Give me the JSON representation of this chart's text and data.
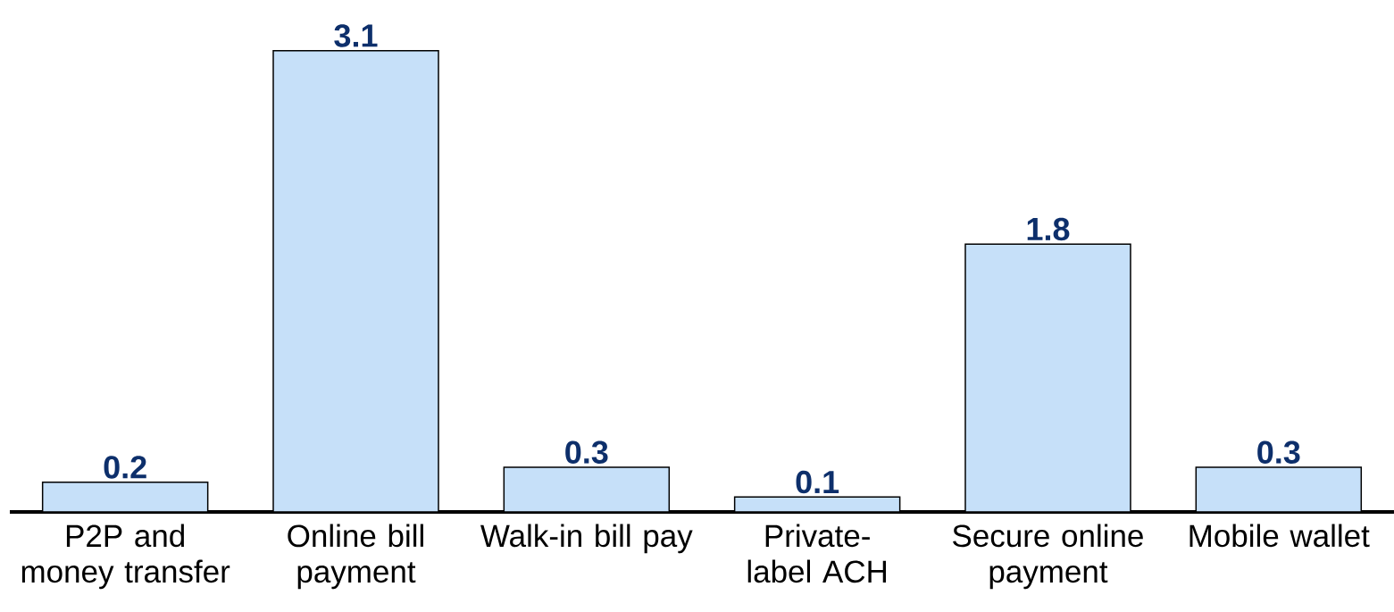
{
  "chart_data": {
    "type": "bar",
    "categories": [
      "P2P and money transfer",
      "Online bill payment",
      "Walk-in bill pay",
      "Private-label ACH",
      "Secure online payment",
      "Mobile wallet"
    ],
    "values": [
      0.2,
      3.1,
      0.3,
      0.1,
      1.8,
      0.3
    ],
    "color": "#c6e0f9",
    "data_labels": true
  }
}
